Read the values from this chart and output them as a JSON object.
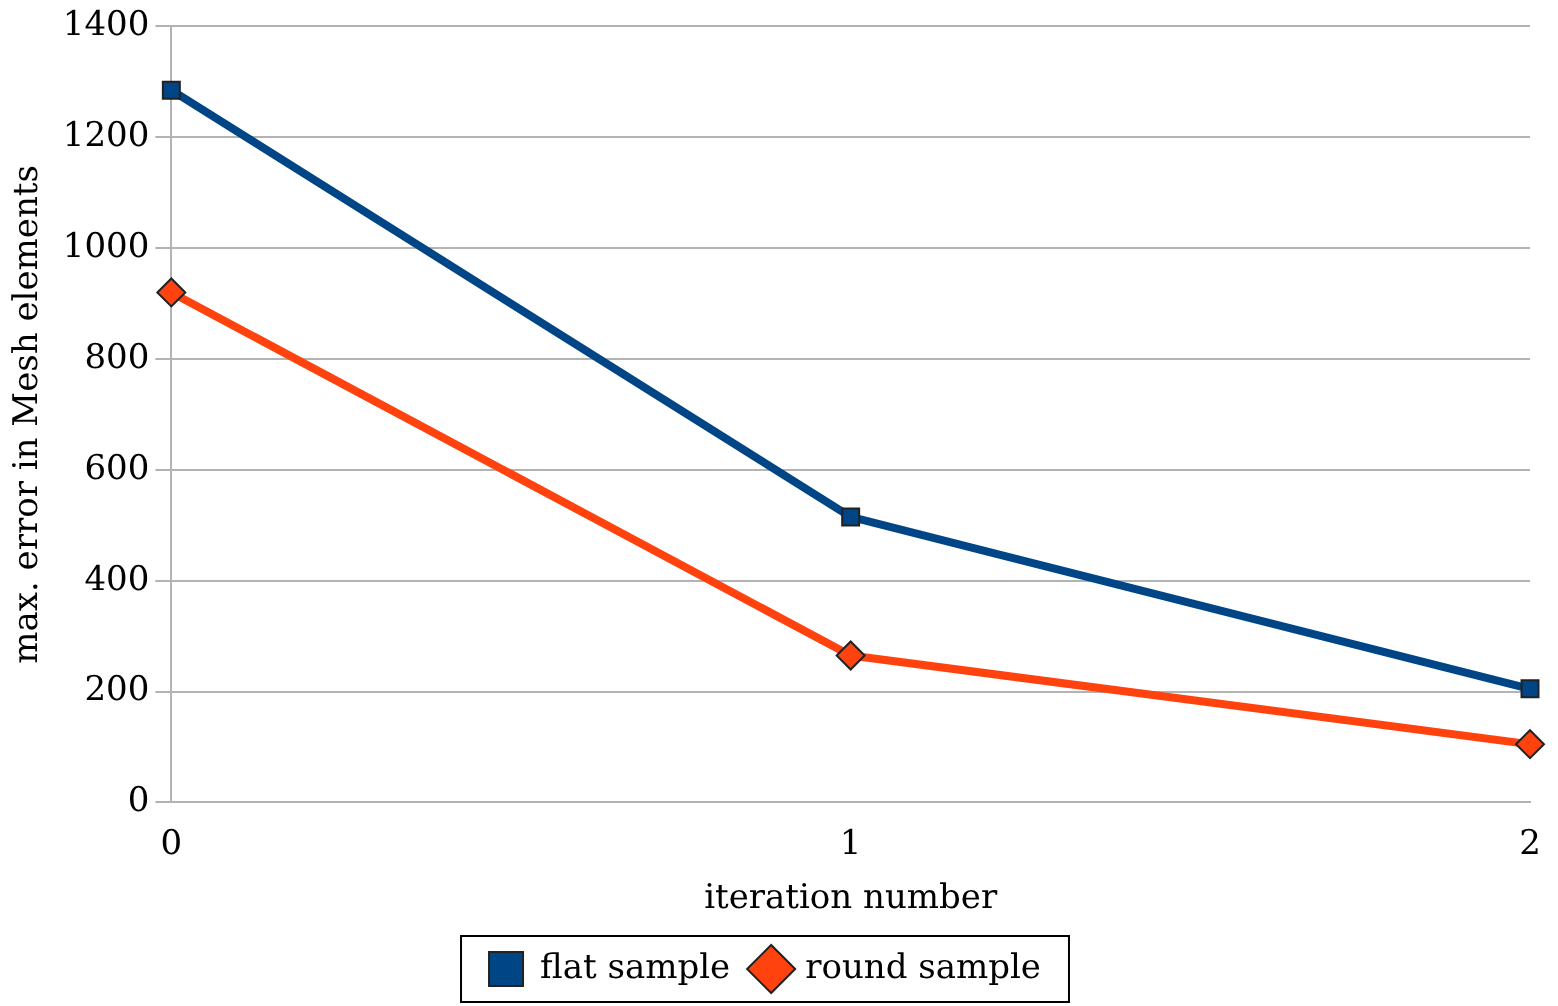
{
  "chart_data": {
    "type": "line",
    "xlabel": "iteration number",
    "ylabel": "max. error in Mesh elements",
    "categories": [
      "0",
      "1",
      "2"
    ],
    "series": [
      {
        "name": "flat sample",
        "color": "#004586",
        "marker": "square",
        "values": [
          1285,
          515,
          205
        ]
      },
      {
        "name": "round sample",
        "color": "#ff420e",
        "marker": "diamond",
        "values": [
          920,
          265,
          105
        ]
      }
    ],
    "ylim": [
      0,
      1400
    ],
    "yticks": [
      0,
      200,
      400,
      600,
      800,
      1000,
      1200,
      1400
    ],
    "grid": "y",
    "legend": "bottom"
  }
}
